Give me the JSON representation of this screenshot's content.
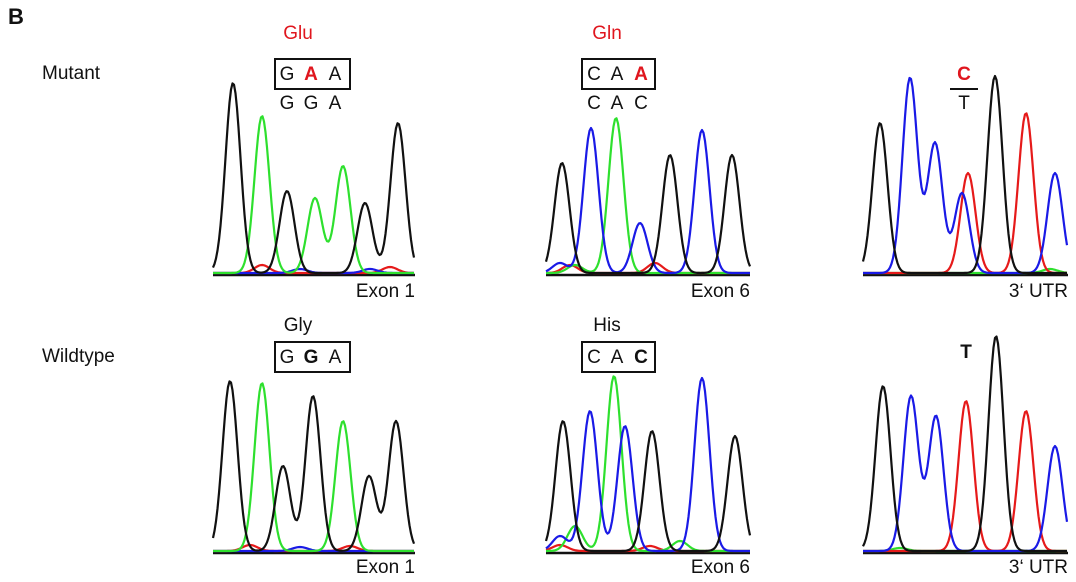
{
  "panel_label": "B",
  "rows": [
    {
      "label": "Mutant",
      "panels": [
        {
          "amino_acid": "Glu",
          "codon": [
            "G",
            "A",
            "A"
          ],
          "reference": [
            "G",
            "G",
            "A"
          ],
          "region": "Exon 1"
        },
        {
          "amino_acid": "Gln",
          "codon": [
            "C",
            "A",
            "A"
          ],
          "reference": [
            "C",
            "A",
            "C"
          ],
          "region": "Exon 6"
        },
        {
          "variant": "C",
          "reference": "T",
          "region": "3‘ UTR"
        }
      ]
    },
    {
      "label": "Wildtype",
      "panels": [
        {
          "amino_acid": "Gly",
          "codon": [
            "G",
            "G",
            "A"
          ],
          "region": "Exon 1"
        },
        {
          "amino_acid": "His",
          "codon": [
            "C",
            "A",
            "C"
          ],
          "region": "Exon 6"
        },
        {
          "base": "T",
          "region": "3‘ UTR"
        }
      ]
    }
  ]
}
